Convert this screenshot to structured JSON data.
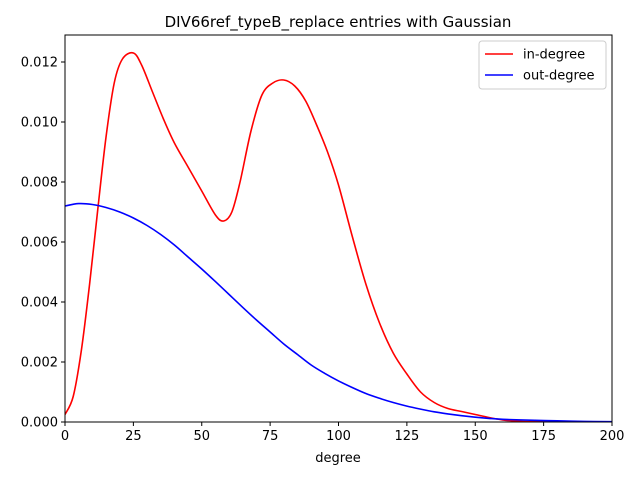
{
  "chart_data": {
    "type": "line",
    "title": "DIV66ref_typeB_replace entries with Gaussian",
    "xlabel": "degree",
    "ylabel": "",
    "xlim": [
      0,
      200
    ],
    "ylim": [
      0,
      0.0129
    ],
    "xticks": [
      0,
      25,
      50,
      75,
      100,
      125,
      150,
      175,
      200
    ],
    "yticks": [
      0.0,
      0.002,
      0.004,
      0.006,
      0.008,
      0.01,
      0.012
    ],
    "ytick_labels": [
      "0.000",
      "0.002",
      "0.004",
      "0.006",
      "0.008",
      "0.010",
      "0.012"
    ],
    "grid": false,
    "legend_position": "top-right",
    "series": [
      {
        "name": "in-degree",
        "color": "#ff0000",
        "x": [
          0,
          3,
          6,
          9,
          12,
          15,
          18,
          21,
          25,
          28,
          32,
          36,
          40,
          45,
          50,
          55,
          58,
          61,
          64,
          68,
          72,
          76,
          80,
          84,
          88,
          92,
          96,
          100,
          105,
          110,
          115,
          120,
          125,
          130,
          135,
          140,
          145,
          150,
          155,
          160,
          165,
          170,
          180,
          190,
          200
        ],
        "y": [
          0.00025,
          0.00085,
          0.0024,
          0.0046,
          0.0071,
          0.0095,
          0.0113,
          0.0121,
          0.0123,
          0.0119,
          0.011,
          0.0101,
          0.0093,
          0.0085,
          0.0077,
          0.0069,
          0.0067,
          0.007,
          0.008,
          0.0097,
          0.0109,
          0.0113,
          0.0114,
          0.0112,
          0.0107,
          0.0099,
          0.009,
          0.0079,
          0.0062,
          0.0046,
          0.0033,
          0.0023,
          0.0016,
          0.001,
          0.00065,
          0.00045,
          0.00035,
          0.00025,
          0.00015,
          7e-05,
          3e-05,
          1e-05,
          0.0,
          0.0,
          0.0
        ]
      },
      {
        "name": "out-degree",
        "color": "#0000ff",
        "x": [
          0,
          5,
          10,
          15,
          20,
          25,
          30,
          35,
          40,
          45,
          50,
          55,
          60,
          65,
          70,
          75,
          80,
          85,
          90,
          95,
          100,
          105,
          110,
          115,
          120,
          125,
          130,
          135,
          140,
          145,
          150,
          155,
          160,
          170,
          180,
          190,
          200
        ],
        "y": [
          0.0072,
          0.00728,
          0.00725,
          0.00715,
          0.007,
          0.0068,
          0.00655,
          0.00625,
          0.0059,
          0.0055,
          0.0051,
          0.00468,
          0.00425,
          0.00382,
          0.0034,
          0.003,
          0.0026,
          0.00225,
          0.0019,
          0.00162,
          0.00137,
          0.00115,
          0.00095,
          0.00079,
          0.00065,
          0.00053,
          0.00043,
          0.00034,
          0.00027,
          0.00021,
          0.00016,
          0.00012,
          9e-05,
          6e-05,
          4e-05,
          2e-05,
          1e-05
        ]
      }
    ]
  }
}
